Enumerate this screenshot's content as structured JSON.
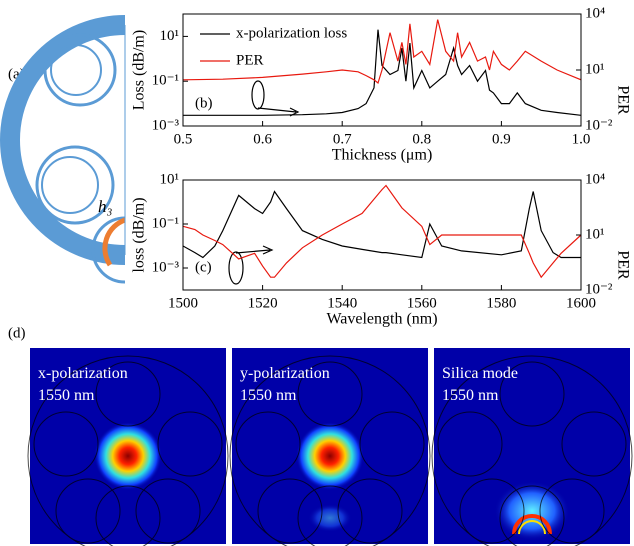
{
  "panel_a": {
    "label": "(a)",
    "annotation": "h₃"
  },
  "panel_d": {
    "label": "(d)",
    "images": [
      {
        "title": "x-polarization",
        "wavelength": "1550 nm"
      },
      {
        "title": "y-polarization",
        "wavelength": "1550 nm"
      },
      {
        "title": "Silica mode",
        "wavelength": "1550 nm"
      }
    ]
  },
  "chart_data": [
    {
      "type": "line",
      "panel_label": "(b)",
      "xlabel": "Thickness (μm)",
      "ylabel": "Loss (dB/m)",
      "y2label": "PER",
      "log_y": true,
      "legend": "upper center",
      "x": [
        0.5,
        0.55,
        0.6,
        0.65,
        0.68,
        0.7,
        0.72,
        0.73,
        0.74,
        0.745,
        0.75,
        0.76,
        0.77,
        0.775,
        0.78,
        0.785,
        0.79,
        0.8,
        0.81,
        0.82,
        0.83,
        0.84,
        0.845,
        0.85,
        0.86,
        0.87,
        0.88,
        0.885,
        0.89,
        0.9,
        0.91,
        0.92,
        0.93,
        0.95,
        0.97,
        1.0
      ],
      "series": [
        {
          "name": "x-polarization loss",
          "color": "#000000",
          "values": [
            0.003,
            0.003,
            0.003,
            0.0032,
            0.0035,
            0.004,
            0.006,
            0.01,
            0.05,
            20,
            0.5,
            0.2,
            0.3,
            3,
            0.1,
            5,
            0.05,
            0.3,
            0.05,
            0.1,
            0.2,
            3,
            0.5,
            0.2,
            0.5,
            0.1,
            0.3,
            0.04,
            0.03,
            0.01,
            0.01,
            0.03,
            0.01,
            0.005,
            0.004,
            0.003
          ]
        },
        {
          "name": "PER",
          "color": "#e8190f",
          "axis": "y2",
          "values": [
            3,
            3.2,
            4,
            6,
            8,
            10,
            8,
            5,
            3,
            2,
            10,
            1000,
            30,
            300,
            20,
            3000,
            50,
            100,
            20,
            5000,
            100,
            30,
            1000,
            50,
            300,
            30,
            50,
            10,
            100,
            20,
            10,
            30,
            100,
            30,
            10,
            3
          ]
        }
      ],
      "xlim": [
        0.5,
        1.0
      ],
      "xticks": [
        0.5,
        0.6,
        0.7,
        0.8,
        0.9,
        {
          "value": 1,
          "label": "1.0"
        }
      ],
      "ylim": [
        0.001,
        100
      ],
      "yticks": [
        {
          "value": 0.001,
          "label": "10⁻³"
        },
        {
          "value": 0.1,
          "label": "10⁻¹"
        },
        {
          "value": 10,
          "label": "10¹"
        }
      ],
      "y2lim": [
        0.01,
        10000
      ],
      "y2ticks": [
        {
          "value": 0.01,
          "label": "10⁻²"
        },
        {
          "value": 10,
          "label": "10¹"
        },
        {
          "value": 10000,
          "label": "10⁴"
        }
      ]
    },
    {
      "type": "line",
      "panel_label": "(c)",
      "xlabel": "Wavelength (nm)",
      "ylabel": "loss (dB/m)",
      "y2label": "PER",
      "log_y": true,
      "x": [
        1500,
        1503,
        1505,
        1508,
        1510,
        1514,
        1518,
        1520,
        1522,
        1523,
        1526,
        1530,
        1535,
        1540,
        1545,
        1550,
        1551,
        1555,
        1560,
        1562,
        1565,
        1570,
        1580,
        1585,
        1587,
        1588,
        1590,
        1593,
        1595,
        1600
      ],
      "series": [
        {
          "color": "#000000",
          "values": [
            0.01,
            0.005,
            0.003,
            0.01,
            0.05,
            2,
            0.5,
            0.3,
            1,
            3,
            0.5,
            0.05,
            0.02,
            0.01,
            0.007,
            0.005,
            0.005,
            0.004,
            0.003,
            0.1,
            0.01,
            0.006,
            0.004,
            0.006,
            0.5,
            3,
            0.05,
            0.005,
            0.003,
            0.003
          ]
        },
        {
          "color": "#e8190f",
          "axis": "y2",
          "values": [
            30,
            20,
            10,
            5,
            3,
            0.5,
            1,
            0.2,
            0.05,
            0.05,
            0.3,
            2,
            10,
            40,
            150,
            3000,
            5000,
            300,
            30,
            3,
            10,
            10,
            10,
            10,
            1,
            0.3,
            0.05,
            0.3,
            1,
            10
          ]
        }
      ],
      "xlim": [
        1500,
        1600
      ],
      "xticks": [
        1500,
        1520,
        1540,
        1560,
        1580,
        1600
      ],
      "ylim": [
        0.0001,
        10
      ],
      "yticks": [
        {
          "value": 0.001,
          "label": "10⁻³"
        },
        {
          "value": 0.1,
          "label": "10⁻¹"
        },
        {
          "value": 10,
          "label": "10¹"
        }
      ],
      "y2lim": [
        0.01,
        10000
      ],
      "y2ticks": [
        {
          "value": 0.01,
          "label": "10⁻²"
        },
        {
          "value": 10,
          "label": "10¹"
        },
        {
          "value": 10000,
          "label": "10⁴"
        }
      ]
    }
  ]
}
